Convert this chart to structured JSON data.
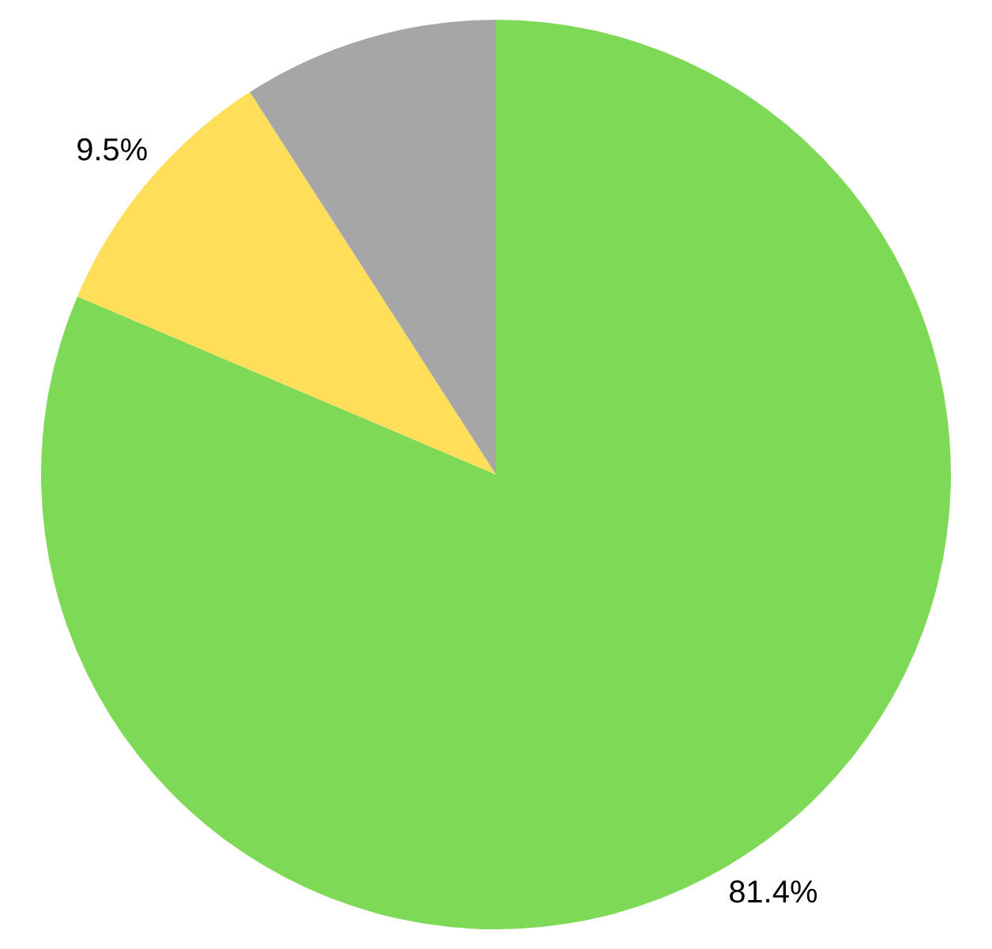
{
  "chart_data": {
    "type": "pie",
    "categories": [
      null,
      null,
      null
    ],
    "values": [
      81.4,
      9.5,
      9.1
    ],
    "colors": [
      "#7ed957",
      "#ffde59",
      "#a6a6a6"
    ],
    "value_labels": [
      "81.4%",
      "9.5%",
      null
    ]
  }
}
